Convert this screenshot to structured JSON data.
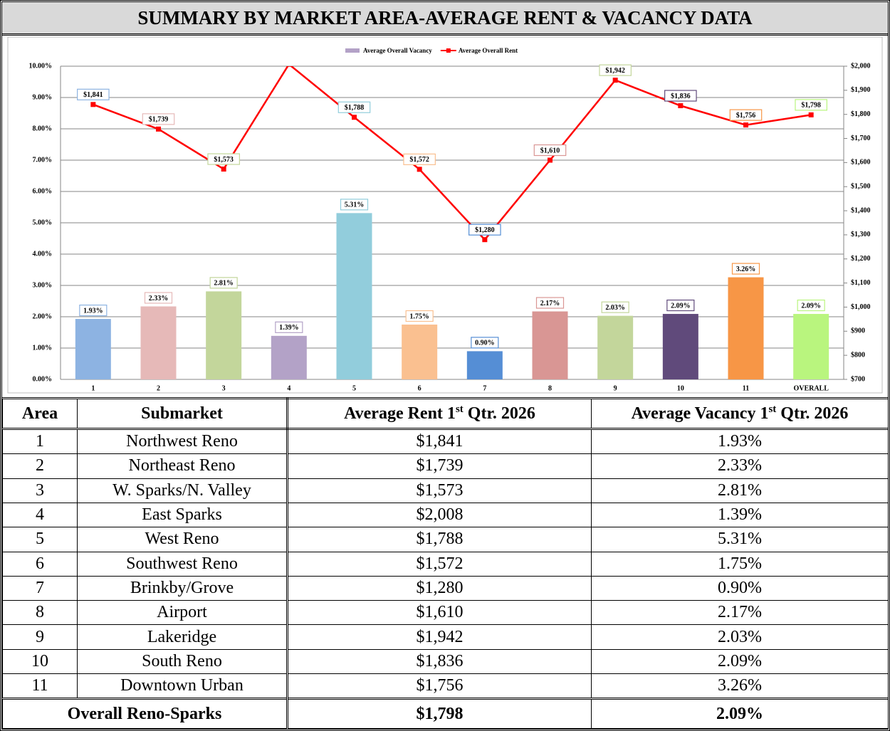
{
  "title": "SUMMARY BY MARKET AREA-AVERAGE RENT & VACANCY DATA",
  "chart_data": {
    "type": "bar",
    "categories": [
      "1",
      "2",
      "3",
      "4",
      "5",
      "6",
      "7",
      "8",
      "9",
      "10",
      "11",
      "OVERALL"
    ],
    "series": [
      {
        "name": "Average Overall Vacancy",
        "type": "bar",
        "color": "#b3a2c7",
        "colors": [
          "#8db3e2",
          "#e6b9b8",
          "#c3d69b",
          "#b3a2c7",
          "#92cddc",
          "#fac090",
          "#558ed5",
          "#d99694",
          "#c3d69b",
          "#604a7b",
          "#f79646",
          "#b9f57e"
        ],
        "values": [
          1.93,
          2.33,
          2.81,
          1.39,
          5.31,
          1.75,
          0.9,
          2.17,
          2.03,
          2.09,
          3.26,
          2.09
        ],
        "value_labels": [
          "1.93%",
          "2.33%",
          "2.81%",
          "1.39%",
          "5.31%",
          "1.75%",
          "0.90%",
          "2.17%",
          "2.03%",
          "2.09%",
          "3.26%",
          "2.09%"
        ]
      },
      {
        "name": "Average Overall Rent",
        "type": "line",
        "axis": "y2",
        "color": "#ff0000",
        "values": [
          1841,
          1739,
          1573,
          2008,
          1788,
          1572,
          1280,
          1610,
          1942,
          1836,
          1756,
          1798
        ],
        "value_labels": [
          "$1,841",
          "$1,739",
          "$1,573",
          null,
          "$1,788",
          "$1,572",
          "$1,280",
          "$1,610",
          "$1,942",
          "$1,836",
          "$1,756",
          "$1,798"
        ]
      }
    ],
    "ylim": [
      0,
      10
    ],
    "yticks": [
      {
        "value": 0,
        "label": "0.00%"
      },
      {
        "value": 1,
        "label": "1.00%"
      },
      {
        "value": 2,
        "label": "2.00%"
      },
      {
        "value": 3,
        "label": "3.00%"
      },
      {
        "value": 4,
        "label": "4.00%"
      },
      {
        "value": 5,
        "label": "5.00%"
      },
      {
        "value": 6,
        "label": "6.00%"
      },
      {
        "value": 7,
        "label": "7.00%"
      },
      {
        "value": 8,
        "label": "8.00%"
      },
      {
        "value": 9,
        "label": "9.00%"
      },
      {
        "value": 10,
        "label": "10.00%"
      }
    ],
    "y2lim": [
      700,
      2000
    ],
    "y2ticks": [
      {
        "value": 700,
        "label": "$700"
      },
      {
        "value": 800,
        "label": "$800"
      },
      {
        "value": 900,
        "label": "$900"
      },
      {
        "value": 1000,
        "label": "$1,000"
      },
      {
        "value": 1100,
        "label": "$1,100"
      },
      {
        "value": 1200,
        "label": "$1,200"
      },
      {
        "value": 1300,
        "label": "$1,300"
      },
      {
        "value": 1400,
        "label": "$1,400"
      },
      {
        "value": 1500,
        "label": "$1,500"
      },
      {
        "value": 1600,
        "label": "$1,600"
      },
      {
        "value": 1700,
        "label": "$1,700"
      },
      {
        "value": 1800,
        "label": "$1,800"
      },
      {
        "value": 1900,
        "label": "$1,900"
      },
      {
        "value": 2000,
        "label": "$2,000"
      }
    ],
    "grid": true,
    "legend": "top"
  },
  "table": {
    "headers": [
      [
        "Area"
      ],
      [
        "Submarket"
      ],
      [
        "Average Rent 1",
        "st",
        " Qtr. 2026"
      ],
      [
        "Average Vacancy 1",
        "st",
        " Qtr. 2026"
      ]
    ],
    "rows": [
      [
        "1",
        "Northwest Reno",
        "$1,841",
        "1.93%"
      ],
      [
        "2",
        "Northeast Reno",
        "$1,739",
        "2.33%"
      ],
      [
        "3",
        "W. Sparks/N. Valley",
        "$1,573",
        "2.81%"
      ],
      [
        "4",
        "East Sparks",
        "$2,008",
        "1.39%"
      ],
      [
        "5",
        "West Reno",
        "$1,788",
        "5.31%"
      ],
      [
        "6",
        "Southwest Reno",
        "$1,572",
        "1.75%"
      ],
      [
        "7",
        "Brinkby/Grove",
        "$1,280",
        "0.90%"
      ],
      [
        "8",
        "Airport",
        "$1,610",
        "2.17%"
      ],
      [
        "9",
        "Lakeridge",
        "$1,942",
        "2.03%"
      ],
      [
        "10",
        "South Reno",
        "$1,836",
        "2.09%"
      ],
      [
        "11",
        "Downtown Urban",
        "$1,756",
        "3.26%"
      ]
    ],
    "footer": [
      "Overall Reno-Sparks",
      "$1,798",
      "2.09%"
    ]
  }
}
